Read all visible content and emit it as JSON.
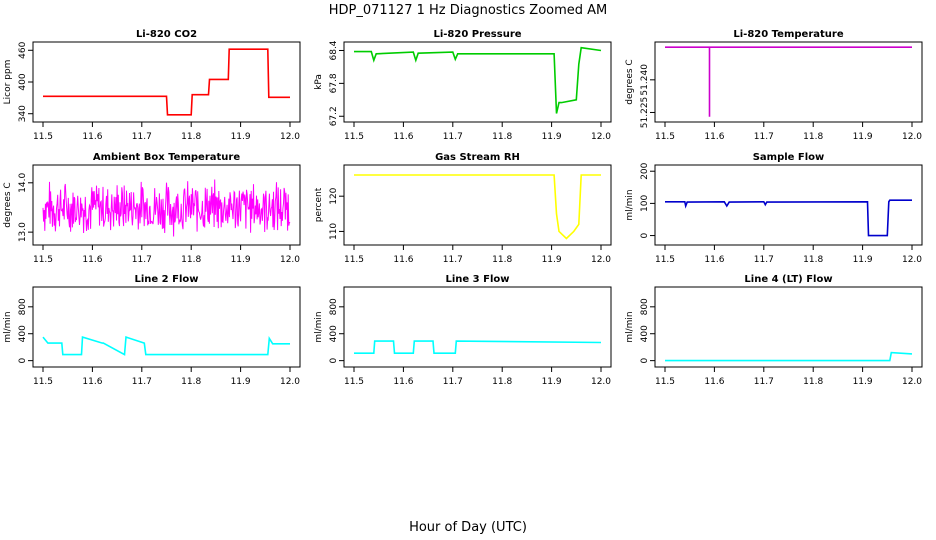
{
  "figure": {
    "title": "HDP_071127  1 Hz Diagnostics Zoomed AM",
    "xlabel": "Hour of Day (UTC)"
  },
  "chart_data": [
    {
      "type": "line",
      "title": "Li-820 CO2",
      "ylabel": "Licor ppm",
      "color": "#ff0000",
      "xlim": [
        11.5,
        12.0
      ],
      "ylim": [
        330,
        470
      ],
      "xticks": [
        "11.5",
        "11.6",
        "11.7",
        "11.8",
        "11.9",
        "12.0"
      ],
      "yticks": [
        "340",
        "400",
        "460"
      ],
      "series": [
        {
          "x": [
            11.5,
            11.75,
            11.752,
            11.8,
            11.802,
            11.835,
            11.837,
            11.875,
            11.877,
            11.955,
            11.957,
            12.0
          ],
          "y": [
            373,
            373,
            338,
            338,
            376,
            376,
            405,
            405,
            462,
            462,
            371,
            371
          ]
        }
      ]
    },
    {
      "type": "line",
      "title": "Li-820 Pressure",
      "ylabel": "kPa",
      "color": "#00cc00",
      "xlim": [
        11.5,
        12.0
      ],
      "ylim": [
        67.15,
        68.5
      ],
      "xticks": [
        "11.5",
        "11.6",
        "11.7",
        "11.8",
        "11.9",
        "12.0"
      ],
      "yticks": [
        "67.2",
        "67.8",
        "68.4"
      ],
      "series": [
        {
          "x": [
            11.5,
            11.535,
            11.54,
            11.545,
            11.62,
            11.625,
            11.63,
            11.7,
            11.705,
            11.71,
            11.905,
            11.91,
            11.915,
            11.92,
            11.95,
            11.955,
            11.96,
            12.0
          ],
          "y": [
            68.38,
            68.38,
            68.22,
            68.34,
            68.37,
            68.22,
            68.35,
            68.37,
            68.24,
            68.34,
            68.34,
            67.25,
            67.45,
            67.45,
            67.5,
            68.15,
            68.45,
            68.4
          ]
        }
      ]
    },
    {
      "type": "line",
      "title": "Li-820 Temperature",
      "ylabel": "degrees C",
      "color": "#cc00cc",
      "xlim": [
        11.5,
        12.0
      ],
      "ylim": [
        51.222,
        51.256
      ],
      "xticks": [
        "11.5",
        "11.6",
        "11.7",
        "11.8",
        "11.9",
        "12.0"
      ],
      "yticks": [
        "51.225",
        "51.240"
      ],
      "series": [
        {
          "x": [
            11.5,
            11.59,
            11.59,
            11.59,
            12.0
          ],
          "y": [
            51.255,
            51.255,
            51.223,
            51.255,
            51.255
          ]
        }
      ]
    },
    {
      "type": "line",
      "title": "Ambient Box Temperature",
      "ylabel": "degrees C",
      "color": "#ff00ff",
      "xlim": [
        11.5,
        12.0
      ],
      "ylim": [
        12.8,
        14.3
      ],
      "xticks": [
        "11.5",
        "11.6",
        "11.7",
        "11.8",
        "11.9",
        "12.0"
      ],
      "yticks": [
        "13.0",
        "14.0"
      ],
      "series": [
        {
          "x": [
            11.5,
            12.0
          ],
          "y": [
            13.5,
            13.5
          ],
          "noise_band": [
            12.9,
            14.1
          ]
        }
      ]
    },
    {
      "type": "line",
      "title": "Gas Stream RH",
      "ylabel": "percent",
      "color": "#ffff00",
      "xlim": [
        11.5,
        12.0
      ],
      "ylim": [
        107,
        128
      ],
      "xticks": [
        "11.5",
        "11.6",
        "11.7",
        "11.8",
        "11.9",
        "12.0"
      ],
      "yticks": [
        "110",
        "120"
      ],
      "series": [
        {
          "x": [
            11.5,
            11.905,
            11.91,
            11.915,
            11.93,
            11.945,
            11.955,
            11.96,
            12.0
          ],
          "y": [
            126,
            126,
            115,
            110,
            108,
            110,
            112,
            126,
            126
          ]
        }
      ]
    },
    {
      "type": "line",
      "title": "Sample Flow",
      "ylabel": "ml/min",
      "color": "#0000cc",
      "xlim": [
        11.5,
        12.0
      ],
      "ylim": [
        -20,
        210
      ],
      "xticks": [
        "11.5",
        "11.6",
        "11.7",
        "11.8",
        "11.9",
        "12.0"
      ],
      "yticks": [
        "0",
        "100",
        "200"
      ],
      "series": [
        {
          "x": [
            11.5,
            11.54,
            11.542,
            11.545,
            11.62,
            11.625,
            11.63,
            11.7,
            11.703,
            11.706,
            11.91,
            11.912,
            11.95,
            11.953,
            11.955,
            12.0
          ],
          "y": [
            105,
            105,
            92,
            104,
            105,
            92,
            104,
            105,
            96,
            104,
            105,
            0,
            0,
            105,
            110,
            110
          ]
        }
      ]
    },
    {
      "type": "line",
      "title": "Line 2 Flow",
      "ylabel": "ml/min",
      "color": "#00ffff",
      "xlim": [
        11.5,
        12.0
      ],
      "ylim": [
        -50,
        1050
      ],
      "xticks": [
        "11.5",
        "11.6",
        "11.7",
        "11.8",
        "11.9",
        "12.0"
      ],
      "yticks": [
        "0",
        "400",
        "800"
      ],
      "series": [
        {
          "x": [
            11.5,
            11.51,
            11.538,
            11.54,
            11.578,
            11.58,
            11.62,
            11.622,
            11.665,
            11.668,
            11.705,
            11.708,
            11.955,
            11.958,
            11.965,
            12.0
          ],
          "y": [
            350,
            260,
            260,
            90,
            90,
            350,
            260,
            260,
            90,
            350,
            260,
            90,
            90,
            330,
            250,
            250
          ]
        }
      ]
    },
    {
      "type": "line",
      "title": "Line 3 Flow",
      "ylabel": "ml/min",
      "color": "#00ffff",
      "xlim": [
        11.5,
        12.0
      ],
      "ylim": [
        -50,
        1050
      ],
      "xticks": [
        "11.5",
        "11.6",
        "11.7",
        "11.8",
        "11.9",
        "12.0"
      ],
      "yticks": [
        "0",
        "400",
        "800"
      ],
      "series": [
        {
          "x": [
            11.5,
            11.54,
            11.542,
            11.58,
            11.582,
            11.62,
            11.622,
            11.66,
            11.662,
            11.705,
            11.707,
            12.0
          ],
          "y": [
            110,
            110,
            290,
            290,
            110,
            110,
            290,
            290,
            110,
            110,
            290,
            270
          ]
        }
      ]
    },
    {
      "type": "line",
      "title": "Line 4 (LT) Flow",
      "ylabel": "ml/min",
      "color": "#00ffff",
      "xlim": [
        11.5,
        12.0
      ],
      "ylim": [
        -50,
        1050
      ],
      "xticks": [
        "11.5",
        "11.6",
        "11.7",
        "11.8",
        "11.9",
        "12.0"
      ],
      "yticks": [
        "0",
        "400",
        "800"
      ],
      "series": [
        {
          "x": [
            11.5,
            11.955,
            11.958,
            12.0
          ],
          "y": [
            0,
            0,
            120,
            100
          ]
        }
      ]
    }
  ]
}
